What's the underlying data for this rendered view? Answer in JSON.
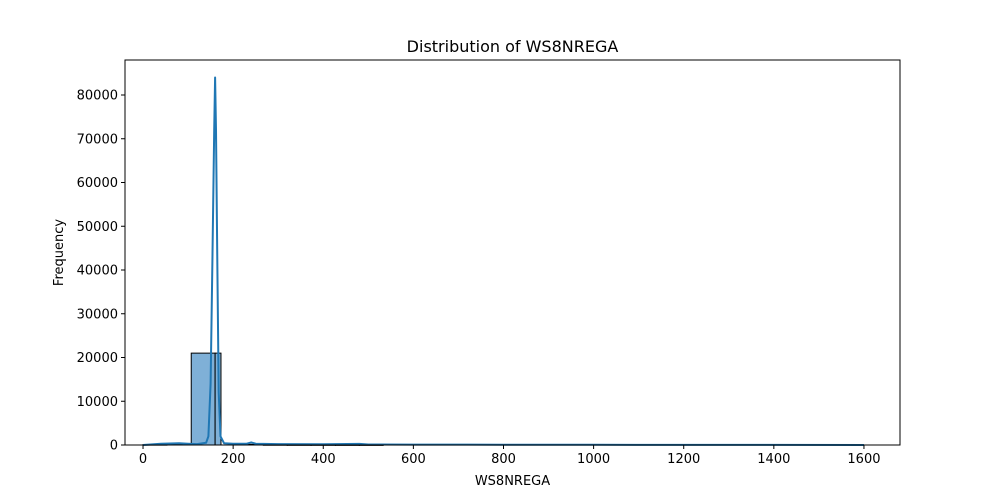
{
  "chart_data": {
    "type": "bar",
    "title": "Distribution of WS8NREGA",
    "xlabel": "WS8NREGA",
    "ylabel": "Frequency",
    "xlim": [
      -40,
      1680
    ],
    "ylim": [
      0,
      88000
    ],
    "xticks": [
      0,
      200,
      400,
      600,
      800,
      1000,
      1200,
      1400,
      1600
    ],
    "yticks": [
      0,
      10000,
      20000,
      30000,
      40000,
      50000,
      60000,
      70000,
      80000
    ],
    "grid": false,
    "bars": [
      {
        "x0": 0,
        "x1": 53,
        "value": 80
      },
      {
        "x0": 53,
        "x1": 107,
        "value": 250
      },
      {
        "x0": 107,
        "x1": 160,
        "value": 21000
      },
      {
        "x0": 160,
        "x1": 173,
        "value": 21000
      },
      {
        "x0": 213,
        "x1": 267,
        "value": 150
      },
      {
        "x0": 267,
        "x1": 320,
        "value": 60
      },
      {
        "x0": 320,
        "x1": 373,
        "value": 40
      },
      {
        "x0": 373,
        "x1": 427,
        "value": 40
      },
      {
        "x0": 427,
        "x1": 480,
        "value": 30
      },
      {
        "x0": 480,
        "x1": 533,
        "value": 30
      }
    ],
    "kde_line": {
      "x": [
        0,
        40,
        80,
        100,
        120,
        140,
        145,
        150,
        154,
        158,
        160,
        162,
        165,
        168,
        172,
        180,
        200,
        230,
        240,
        250,
        300,
        400,
        480,
        500,
        600,
        720,
        800,
        1000,
        1200,
        1400,
        1600
      ],
      "y": [
        0,
        300,
        400,
        300,
        200,
        500,
        2000,
        14000,
        42000,
        72000,
        84000,
        72000,
        40000,
        12000,
        2000,
        400,
        300,
        300,
        600,
        300,
        200,
        150,
        250,
        120,
        80,
        100,
        60,
        40,
        30,
        20,
        0
      ]
    },
    "colors": {
      "bar_fill": "#7fb0d7",
      "bar_edge": "#000000",
      "line": "#1f77b4"
    }
  }
}
